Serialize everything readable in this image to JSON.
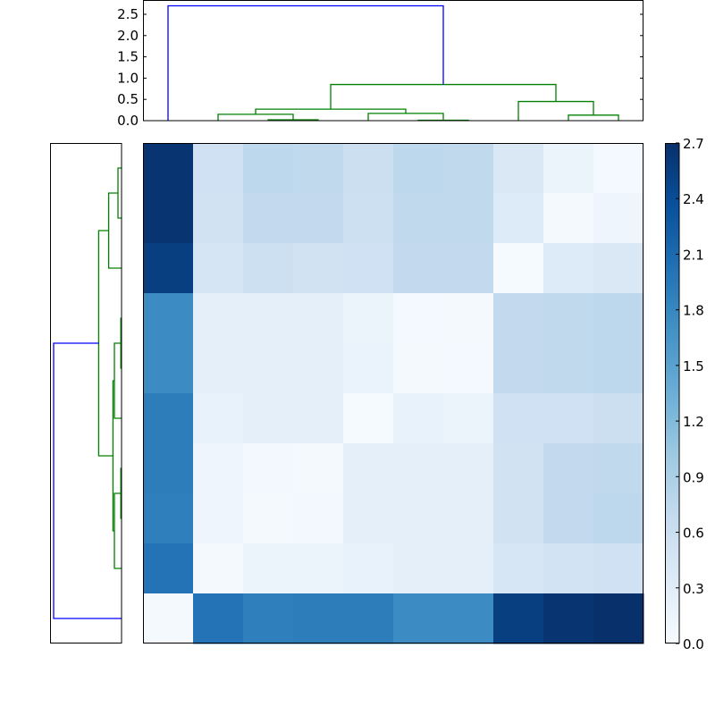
{
  "chart_data": [
    {
      "type": "heatmap",
      "title": "",
      "xlabel": "",
      "ylabel": "",
      "rows": 10,
      "cols": 10,
      "colormap": "Blues",
      "vmin": 0.0,
      "vmax": 2.7,
      "values": [
        [
          2.65,
          0.55,
          0.75,
          0.72,
          0.6,
          0.75,
          0.72,
          0.4,
          0.15,
          0.05
        ],
        [
          2.65,
          0.52,
          0.7,
          0.7,
          0.57,
          0.72,
          0.72,
          0.35,
          0.04,
          0.12
        ],
        [
          2.55,
          0.47,
          0.57,
          0.52,
          0.55,
          0.7,
          0.7,
          0.03,
          0.35,
          0.4
        ],
        [
          1.75,
          0.25,
          0.25,
          0.25,
          0.15,
          0.05,
          0.04,
          0.7,
          0.72,
          0.75
        ],
        [
          1.75,
          0.25,
          0.25,
          0.25,
          0.17,
          0.04,
          0.05,
          0.7,
          0.72,
          0.75
        ],
        [
          1.9,
          0.2,
          0.25,
          0.25,
          0.03,
          0.2,
          0.15,
          0.55,
          0.55,
          0.6
        ],
        [
          1.9,
          0.12,
          0.07,
          0.04,
          0.25,
          0.25,
          0.25,
          0.52,
          0.7,
          0.72
        ],
        [
          1.88,
          0.12,
          0.04,
          0.07,
          0.25,
          0.25,
          0.25,
          0.52,
          0.7,
          0.75
        ],
        [
          2.0,
          0.04,
          0.15,
          0.15,
          0.2,
          0.25,
          0.25,
          0.45,
          0.5,
          0.55
        ],
        [
          0.04,
          2.0,
          1.88,
          1.9,
          1.9,
          1.75,
          1.75,
          2.55,
          2.65,
          2.7
        ]
      ],
      "grid": false
    },
    {
      "type": "dendrogram",
      "orientation": "top",
      "ylim": [
        0,
        2.8
      ],
      "yticks": [
        "0.0",
        "0.5",
        "1.0",
        "1.5",
        "2.0",
        "2.5"
      ],
      "leaf_positions": [
        0,
        1,
        2,
        3,
        4,
        5,
        6,
        7,
        8,
        9
      ],
      "links": [
        {
          "left": 5,
          "right": 6,
          "height": 0.01,
          "color": "#008000"
        },
        {
          "left": 2,
          "right": 3,
          "height": 0.02,
          "color": "#008000"
        },
        {
          "left": 8,
          "right": 9,
          "height": 0.13,
          "color": "#008000"
        },
        {
          "left": 1,
          "right": 2.5,
          "height": 0.15,
          "color": "#008000"
        },
        {
          "left": 4,
          "right": 5.5,
          "height": 0.17,
          "color": "#008000"
        },
        {
          "left": 1.75,
          "right": 4.75,
          "height": 0.27,
          "color": "#008000"
        },
        {
          "left": 7,
          "right": 8.5,
          "height": 0.45,
          "color": "#008000"
        },
        {
          "left": 3.25,
          "right": 7.75,
          "height": 0.85,
          "color": "#008000"
        },
        {
          "left": 0,
          "right": 5.5,
          "height": 2.7,
          "color": "#0000ff"
        }
      ]
    },
    {
      "type": "dendrogram",
      "orientation": "left",
      "links": [
        {
          "top": 3,
          "bottom": 4,
          "height": 0.01,
          "color": "#008000"
        },
        {
          "top": 6,
          "bottom": 7,
          "height": 0.01,
          "color": "#008000"
        },
        {
          "top": 0,
          "bottom": 1,
          "height": 0.05,
          "color": "#008000"
        },
        {
          "top": 3.5,
          "bottom": 5,
          "height": 0.1,
          "color": "#008000"
        },
        {
          "top": 6.5,
          "bottom": 8,
          "height": 0.1,
          "color": "#008000"
        },
        {
          "top": 0.5,
          "bottom": 2,
          "height": 0.18,
          "color": "#008000"
        },
        {
          "top": 4.25,
          "bottom": 7.25,
          "height": 0.12,
          "color": "#008000"
        },
        {
          "top": 1.25,
          "bottom": 5.75,
          "height": 0.32,
          "color": "#008000"
        },
        {
          "top": 3.5,
          "bottom": 9,
          "height": 0.95,
          "color": "#0000ff"
        }
      ]
    },
    {
      "type": "colorbar",
      "range": [
        0.0,
        2.7
      ],
      "ticks": [
        "0.0",
        "0.3",
        "0.6",
        "0.9",
        "1.2",
        "1.5",
        "1.8",
        "2.1",
        "2.4",
        "2.7"
      ]
    }
  ],
  "colors": {
    "blues_stops": [
      "#f7fbff",
      "#deebf7",
      "#c6dbef",
      "#9ecae1",
      "#6baed6",
      "#4292c6",
      "#2171b5",
      "#08519c",
      "#08306b"
    ],
    "cluster_green": "#008000",
    "cluster_blue": "#0000ff"
  }
}
